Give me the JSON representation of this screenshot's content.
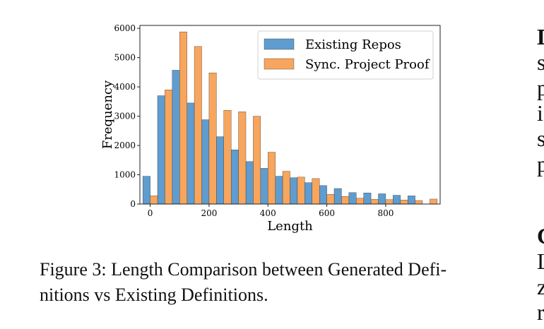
{
  "chart_data": {
    "type": "bar",
    "xlabel": "Length",
    "ylabel": "Frequency",
    "xlim": [
      -35,
      985
    ],
    "ylim": [
      0,
      6100
    ],
    "xticks": [
      0,
      200,
      400,
      600,
      800
    ],
    "yticks": [
      0,
      1000,
      2000,
      3000,
      4000,
      5000,
      6000
    ],
    "xtick_labels": [
      "0",
      "200",
      "400",
      "600",
      "800"
    ],
    "ytick_labels": [
      "0",
      "1000",
      "2000",
      "3000",
      "4000",
      "5000",
      "6000"
    ],
    "bin_width": 50,
    "bin_starts": [
      -25,
      25,
      75,
      125,
      175,
      225,
      275,
      325,
      375,
      425,
      475,
      525,
      575,
      625,
      675,
      725,
      775,
      825,
      875,
      925
    ],
    "legend_position": "top-right",
    "grid": false,
    "series": [
      {
        "name": "Existing Repos",
        "color": "#5f9ccf",
        "values": [
          950,
          3700,
          4570,
          3450,
          2880,
          2300,
          1850,
          1450,
          1220,
          950,
          900,
          730,
          630,
          530,
          390,
          380,
          350,
          300,
          280,
          0
        ]
      },
      {
        "name": "Sync. Project Proof",
        "color": "#f8a55d",
        "values": [
          280,
          3900,
          5880,
          5380,
          4480,
          3200,
          3150,
          3000,
          1770,
          1120,
          920,
          870,
          330,
          260,
          200,
          160,
          150,
          140,
          120,
          170
        ]
      }
    ]
  },
  "caption": "Figure 3: Length Comparison between Generated Definitions vs Existing Definitions.",
  "caption_line1": "Figure 3: Length Comparison between Generated Defi-",
  "caption_line2": "nitions vs Existing Definitions.",
  "side_text": [
    "D",
    "s",
    "p",
    "i",
    "s",
    "p",
    "",
    "C",
    "L",
    "z",
    "r"
  ]
}
